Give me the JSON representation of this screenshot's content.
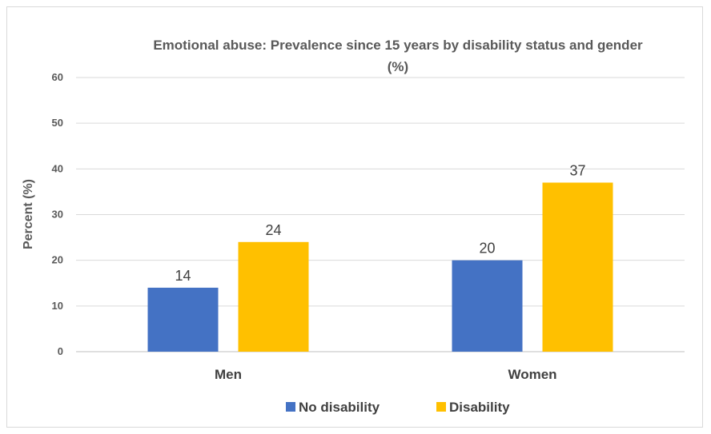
{
  "chart_data": {
    "type": "bar",
    "title": "Emotional abuse:  Prevalence since 15 years by disability status and gender (%)",
    "title_lines": [
      "Emotional abuse:  Prevalence since 15 years by disability status and gender",
      "(%)"
    ],
    "ylabel": "Percent (%)",
    "xlabel": "",
    "categories": [
      "Men",
      "Women"
    ],
    "series": [
      {
        "name": "No disability",
        "values": [
          14,
          20
        ],
        "color": "#4472c4"
      },
      {
        "name": "Disability",
        "values": [
          24,
          37
        ],
        "color": "#ffc000"
      }
    ],
    "ylim": [
      0,
      60
    ],
    "yticks": [
      0,
      10,
      20,
      30,
      40,
      50,
      60
    ],
    "grid": true,
    "legend_position": "bottom"
  }
}
